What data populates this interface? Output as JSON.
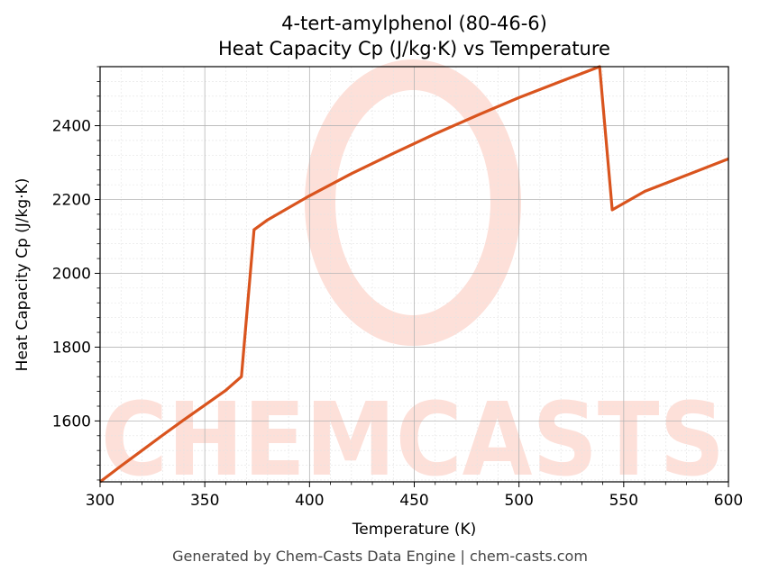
{
  "chart_data": {
    "type": "line",
    "title": "4-tert-amylphenol (80-46-6)",
    "subtitle": "Heat Capacity Cp (J/kg·K) vs Temperature",
    "xlabel": "Temperature (K)",
    "ylabel": "Heat Capacity Cp (J/kg·K)",
    "xlim": [
      300,
      600
    ],
    "ylim": [
      1435,
      2560
    ],
    "xticks": [
      300,
      350,
      400,
      450,
      500,
      550,
      600
    ],
    "yticks": [
      1600,
      1800,
      2000,
      2200,
      2400
    ],
    "grid": true,
    "line_color": "#d9541e",
    "series": [
      {
        "x": [
          300,
          310,
          320,
          330,
          340,
          350,
          360,
          367.5,
          373.5,
          380,
          400,
          420,
          440,
          460,
          480,
          500,
          520,
          538.5,
          544.5,
          560,
          580,
          600
        ],
        "values": [
          1435,
          1478,
          1520,
          1562,
          1603,
          1643,
          1683,
          1720,
          2118,
          2145,
          2210,
          2270,
          2325,
          2378,
          2428,
          2476,
          2520,
          2560,
          2172,
          2222,
          2266,
          2310
        ]
      }
    ]
  },
  "watermark": {
    "text": "CHEMCASTS",
    "color": "#fde0d9"
  },
  "footer": "Generated by Chem-Casts Data Engine | chem-casts.com"
}
